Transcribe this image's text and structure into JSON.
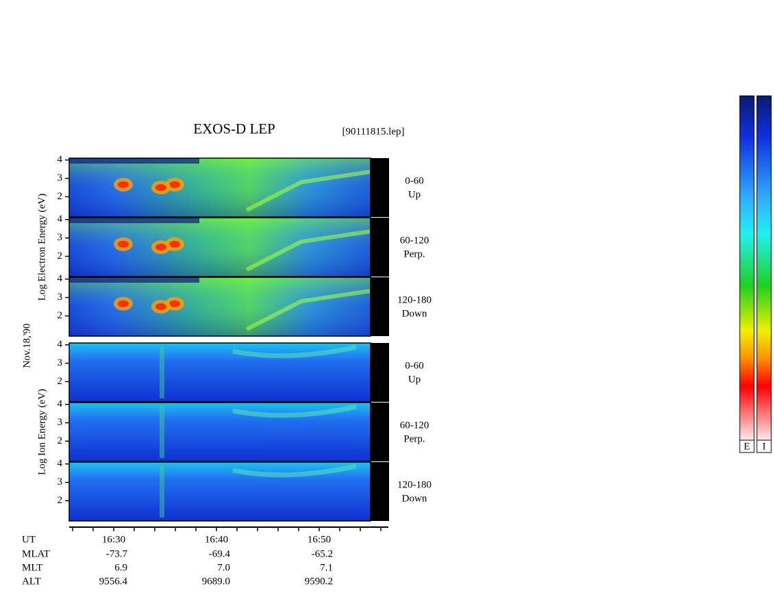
{
  "title": "EXOS-D LEP",
  "file": "[90111815.lep]",
  "date": "Nov.18,'90",
  "electron": {
    "axis_label": "Log Electron Energy (eV)",
    "ylim": [
      0.9,
      4.1
    ],
    "yticks": [
      4,
      3,
      2
    ],
    "panels": [
      {
        "range": "0-60",
        "direction": "Up"
      },
      {
        "range": "60-120",
        "direction": "Perp."
      },
      {
        "range": "120-180",
        "direction": "Down"
      }
    ]
  },
  "ion": {
    "axis_label": "Log Ion Energy (eV)",
    "ylim": [
      0.9,
      4.1
    ],
    "yticks": [
      4,
      3,
      2
    ],
    "panels": [
      {
        "range": "0-60",
        "direction": "Up"
      },
      {
        "range": "60-120",
        "direction": "Perp."
      },
      {
        "range": "120-180",
        "direction": "Down"
      }
    ]
  },
  "footer": {
    "rows": [
      [
        "UT",
        "16:30",
        "16:40",
        "16:50"
      ],
      [
        "MLAT",
        "-73.7",
        "-69.4",
        "-65.2"
      ],
      [
        "MLT",
        "6.9",
        "7.0",
        "7.1"
      ],
      [
        "ALT",
        "9556.4",
        "9689.0",
        "9590.2"
      ]
    ]
  },
  "colorbars": [
    "E",
    "I"
  ]
}
